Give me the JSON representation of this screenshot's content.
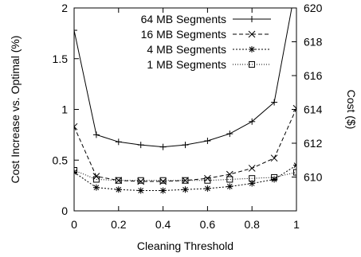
{
  "chart_data": {
    "type": "line",
    "xlabel": "Cleaning Threshold",
    "ylabel": "Cost Increase vs. Optimal (%)",
    "y2label": "Cost ($)",
    "xlim": [
      0,
      1
    ],
    "ylim": [
      0,
      2
    ],
    "y2lim": [
      608,
      620
    ],
    "x_ticks": [
      0,
      0.2,
      0.4,
      0.6,
      0.8,
      1
    ],
    "x_tick_labels": [
      "0",
      "0.2",
      "0.4",
      "0.6",
      "0.8",
      "1"
    ],
    "y_ticks": [
      0,
      0.5,
      1,
      1.5,
      2
    ],
    "y_tick_labels": [
      "0",
      "0.5",
      "1",
      "1.5",
      "2"
    ],
    "y2_ticks": [
      610,
      612,
      614,
      616,
      618,
      620
    ],
    "y2_tick_labels": [
      "610",
      "612",
      "614",
      "616",
      "618",
      "620"
    ],
    "grid": false,
    "legend_position": "top-right",
    "x": [
      0,
      0.1,
      0.2,
      0.3,
      0.4,
      0.5,
      0.6,
      0.7,
      0.8,
      0.9,
      1
    ],
    "series": [
      {
        "name": "64 MB Segments",
        "marker": "plus",
        "dash": "solid",
        "values": [
          1.78,
          0.75,
          0.68,
          0.65,
          0.63,
          0.65,
          0.69,
          0.76,
          0.88,
          1.07,
          2.25
        ]
      },
      {
        "name": "16 MB Segments",
        "marker": "cross",
        "dash": "dashed",
        "values": [
          0.83,
          0.34,
          0.3,
          0.29,
          0.29,
          0.3,
          0.32,
          0.36,
          0.42,
          0.52,
          1.01
        ]
      },
      {
        "name": "4 MB Segments",
        "marker": "star",
        "dash": "dotted-short",
        "values": [
          0.38,
          0.23,
          0.21,
          0.2,
          0.2,
          0.21,
          0.22,
          0.24,
          0.27,
          0.31,
          0.45
        ]
      },
      {
        "name": "1 MB Segments",
        "marker": "square",
        "dash": "dotted",
        "values": [
          0.4,
          0.31,
          0.3,
          0.3,
          0.3,
          0.3,
          0.3,
          0.31,
          0.32,
          0.33,
          0.38
        ]
      }
    ]
  }
}
